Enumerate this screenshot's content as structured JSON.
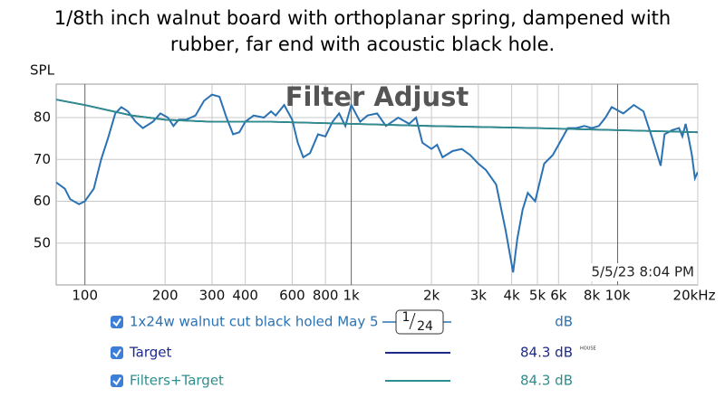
{
  "title": [
    "1/8th inch walnut board with orthoplanar spring, dampened with",
    "rubber, far end with acoustic black hole."
  ],
  "overlay": "Filter Adjust",
  "timestamp": "5/5/23 8:04 PM",
  "chart_data": {
    "type": "line",
    "ylabel": "SPL",
    "xscale": "log",
    "grid": true,
    "xlim": [
      78,
      20000
    ],
    "ylim": [
      40,
      88
    ],
    "yticks": [
      50,
      60,
      70,
      80
    ],
    "xticks": [
      100,
      200,
      300,
      400,
      600,
      800,
      {
        "value": 1000,
        "label": "1k"
      },
      {
        "value": 2000,
        "label": "2k"
      },
      {
        "value": 3000,
        "label": "3k"
      },
      {
        "value": 4000,
        "label": "4k"
      },
      {
        "value": 5000,
        "label": "5k"
      },
      {
        "value": 6000,
        "label": "6k"
      },
      {
        "value": 8000,
        "label": "8k"
      },
      {
        "value": 10000,
        "label": "10k"
      },
      {
        "value": 20000,
        "label": "20kHz"
      }
    ],
    "series": [
      {
        "name": "1x24w walnut cut black holed May 5",
        "color": "#2b72b3",
        "legend_value": "dB",
        "smoothing": {
          "numerator": "1",
          "denominator": "24"
        },
        "x": [
          78,
          84,
          88,
          95,
          100,
          108,
          115,
          122,
          130,
          137,
          145,
          155,
          165,
          180,
          192,
          205,
          215,
          225,
          240,
          260,
          280,
          300,
          320,
          340,
          360,
          380,
          400,
          430,
          470,
          500,
          520,
          560,
          600,
          630,
          660,
          700,
          750,
          800,
          850,
          900,
          950,
          1000,
          1080,
          1150,
          1250,
          1350,
          1500,
          1650,
          1750,
          1850,
          2000,
          2100,
          2200,
          2400,
          2600,
          2800,
          3000,
          3200,
          3500,
          3800,
          4050,
          4200,
          4400,
          4600,
          4900,
          5300,
          5700,
          6000,
          6500,
          7000,
          7500,
          8000,
          8500,
          9000,
          9500,
          10500,
          11500,
          12500,
          13500,
          14500,
          15000,
          16000,
          17000,
          17500,
          18000,
          18500,
          19000,
          19500,
          20000
        ],
        "values": [
          64.5,
          63,
          60.5,
          59.3,
          60,
          63,
          70,
          75,
          81,
          82.5,
          81.5,
          79,
          77.5,
          79,
          81,
          80,
          78,
          79.5,
          79.5,
          80.5,
          84,
          85.5,
          85,
          80,
          76,
          76.5,
          79,
          80.5,
          80,
          81.5,
          80.5,
          83,
          79.5,
          74,
          70.5,
          71.5,
          76,
          75.5,
          79,
          81,
          78,
          83,
          79,
          80.5,
          81,
          78,
          80,
          78.5,
          80,
          74,
          72.5,
          73.5,
          70.5,
          72,
          72.5,
          71,
          69,
          67.5,
          64,
          53,
          43,
          51,
          58,
          62,
          60,
          69,
          71,
          73.5,
          77.5,
          77.5,
          78,
          77.5,
          78,
          80,
          82.5,
          81,
          83,
          81.5,
          75,
          68.5,
          76,
          77,
          77.5,
          75.5,
          78.5,
          75,
          71,
          65.5,
          67
        ]
      },
      {
        "name": "Target",
        "color": "#1c2a8c",
        "legend_value": "84.3 dB",
        "tag": "HOUSE",
        "x": [
          78,
          100,
          150,
          200,
          300,
          500,
          1000,
          2000,
          5000,
          10000,
          20000
        ],
        "values": [
          84.3,
          83,
          80.5,
          79.5,
          79,
          79,
          78.5,
          78,
          77.5,
          77,
          76.5
        ]
      },
      {
        "name": "Filters+Target",
        "color": "#2e8d8d",
        "legend_value": "84.3 dB",
        "x": [
          78,
          100,
          150,
          200,
          300,
          500,
          1000,
          2000,
          5000,
          10000,
          20000
        ],
        "values": [
          84.3,
          83,
          80.5,
          79.5,
          79,
          79,
          78.5,
          78,
          77.5,
          77,
          76.5
        ]
      }
    ]
  }
}
